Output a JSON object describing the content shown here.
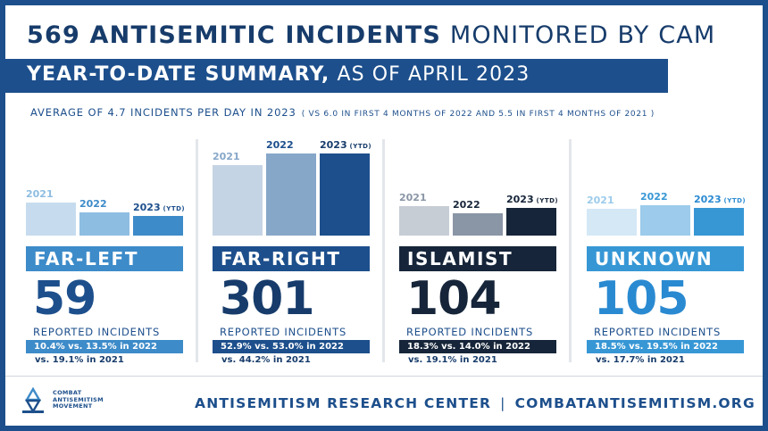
{
  "header": {
    "title_bold": "569 ANTISEMITIC INCIDENTS",
    "title_light": "MONITORED BY CAM",
    "subtitle_bold": "YEAR-TO-DATE SUMMARY,",
    "subtitle_light": "AS OF APRIL 2023",
    "average": "AVERAGE OF 4.7 INCIDENTS PER DAY IN 2023",
    "average_note": "( VS 6.0 IN FIRST 4 MONTHS OF 2022 AND 5.5 IN FIRST 4 MONTHS OF 2021 )"
  },
  "chart_data": {
    "type": "bar",
    "year_labels": [
      "2021",
      "2022",
      "2023"
    ],
    "ytd_label": "(YTD)",
    "reported_label": "REPORTED INCIDENTS",
    "panels": [
      {
        "category": "FAR-LEFT",
        "count": "59",
        "values": [
          0.4,
          0.28,
          0.24
        ],
        "share_text": "10.4% vs. 13.5% in 2022",
        "prev_text": "vs. 19.1% in 2021",
        "colors": [
          "#c6dcee",
          "#8ebde2",
          "#3d8bc9"
        ],
        "accent": "#3d8bc9",
        "number_color": "#1d4f8c"
      },
      {
        "category": "FAR-RIGHT",
        "count": "301",
        "values": [
          0.86,
          1.0,
          1.0
        ],
        "share_text": "52.9% vs. 53.0% in 2022",
        "prev_text": "vs. 44.2% in 2021",
        "colors": [
          "#c5d4e4",
          "#87a7c9",
          "#1d4f8c"
        ],
        "accent": "#1d4f8c",
        "number_color": "#173c6b"
      },
      {
        "category": "ISLAMIST",
        "count": "104",
        "values": [
          0.36,
          0.27,
          0.34
        ],
        "share_text": "18.3% vs. 14.0% in 2022",
        "prev_text": "vs. 19.1% in 2021",
        "colors": [
          "#c7cdd5",
          "#8a96a6",
          "#162539"
        ],
        "accent": "#162539",
        "number_color": "#162539"
      },
      {
        "category": "UNKNOWN",
        "count": "105",
        "values": [
          0.33,
          0.37,
          0.34
        ],
        "share_text": "18.5% vs. 19.5% in 2022",
        "prev_text": "vs. 17.7% in 2021",
        "colors": [
          "#d4e8f6",
          "#9ccbeb",
          "#3797d5"
        ],
        "accent": "#3797d5",
        "number_color": "#2a8ad1"
      }
    ]
  },
  "footer": {
    "logo_text": "COMBAT\nANTISEMITISM\nMOVEMENT",
    "org": "ANTISEMITISM RESEARCH CENTER",
    "separator": "|",
    "site": "COMBATANTISEMITISM.ORG"
  }
}
